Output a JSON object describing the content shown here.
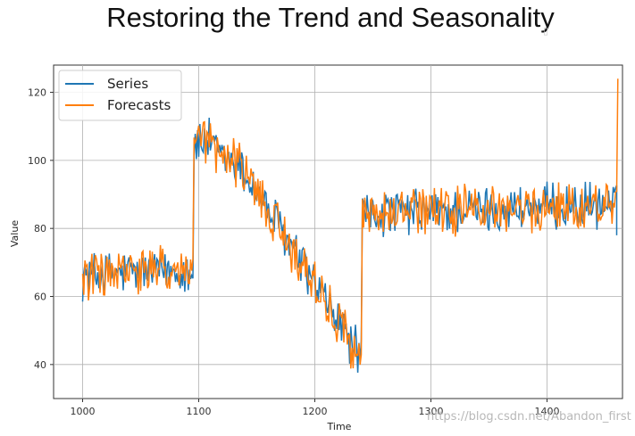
{
  "slide": {
    "title": "Restoring the Trend and Seasonality",
    "watermark": "https://blog.csdn.net/Abandon_first"
  },
  "chart_data": {
    "type": "line",
    "title": "",
    "xlabel": "Time",
    "ylabel": "Value",
    "xlim": [
      975,
      1465
    ],
    "ylim": [
      30,
      128
    ],
    "xticks": [
      1000,
      1100,
      1200,
      1300,
      1400
    ],
    "yticks": [
      40,
      60,
      80,
      100,
      120
    ],
    "grid": true,
    "legend": {
      "placement": "top-left",
      "entries": [
        "Series",
        "Forecasts"
      ]
    },
    "colors": {
      "Series": "#1f77b4",
      "Forecasts": "#ff7f0e"
    },
    "segments": [
      {
        "start": 1000,
        "end": 1095,
        "level_start": 66,
        "level_end": 68
      },
      {
        "start": 1096,
        "end": 1110,
        "level_start": 104,
        "level_end": 106
      },
      {
        "start": 1111,
        "end": 1135,
        "level_start": 103,
        "level_end": 98
      },
      {
        "start": 1136,
        "end": 1240,
        "level_start": 98,
        "level_end": 42
      },
      {
        "start": 1241,
        "end": 1460,
        "level_start": 84,
        "level_end": 87
      }
    ],
    "noise_amplitude": 6,
    "final_spike": {
      "x": 1461,
      "value": 124
    }
  }
}
